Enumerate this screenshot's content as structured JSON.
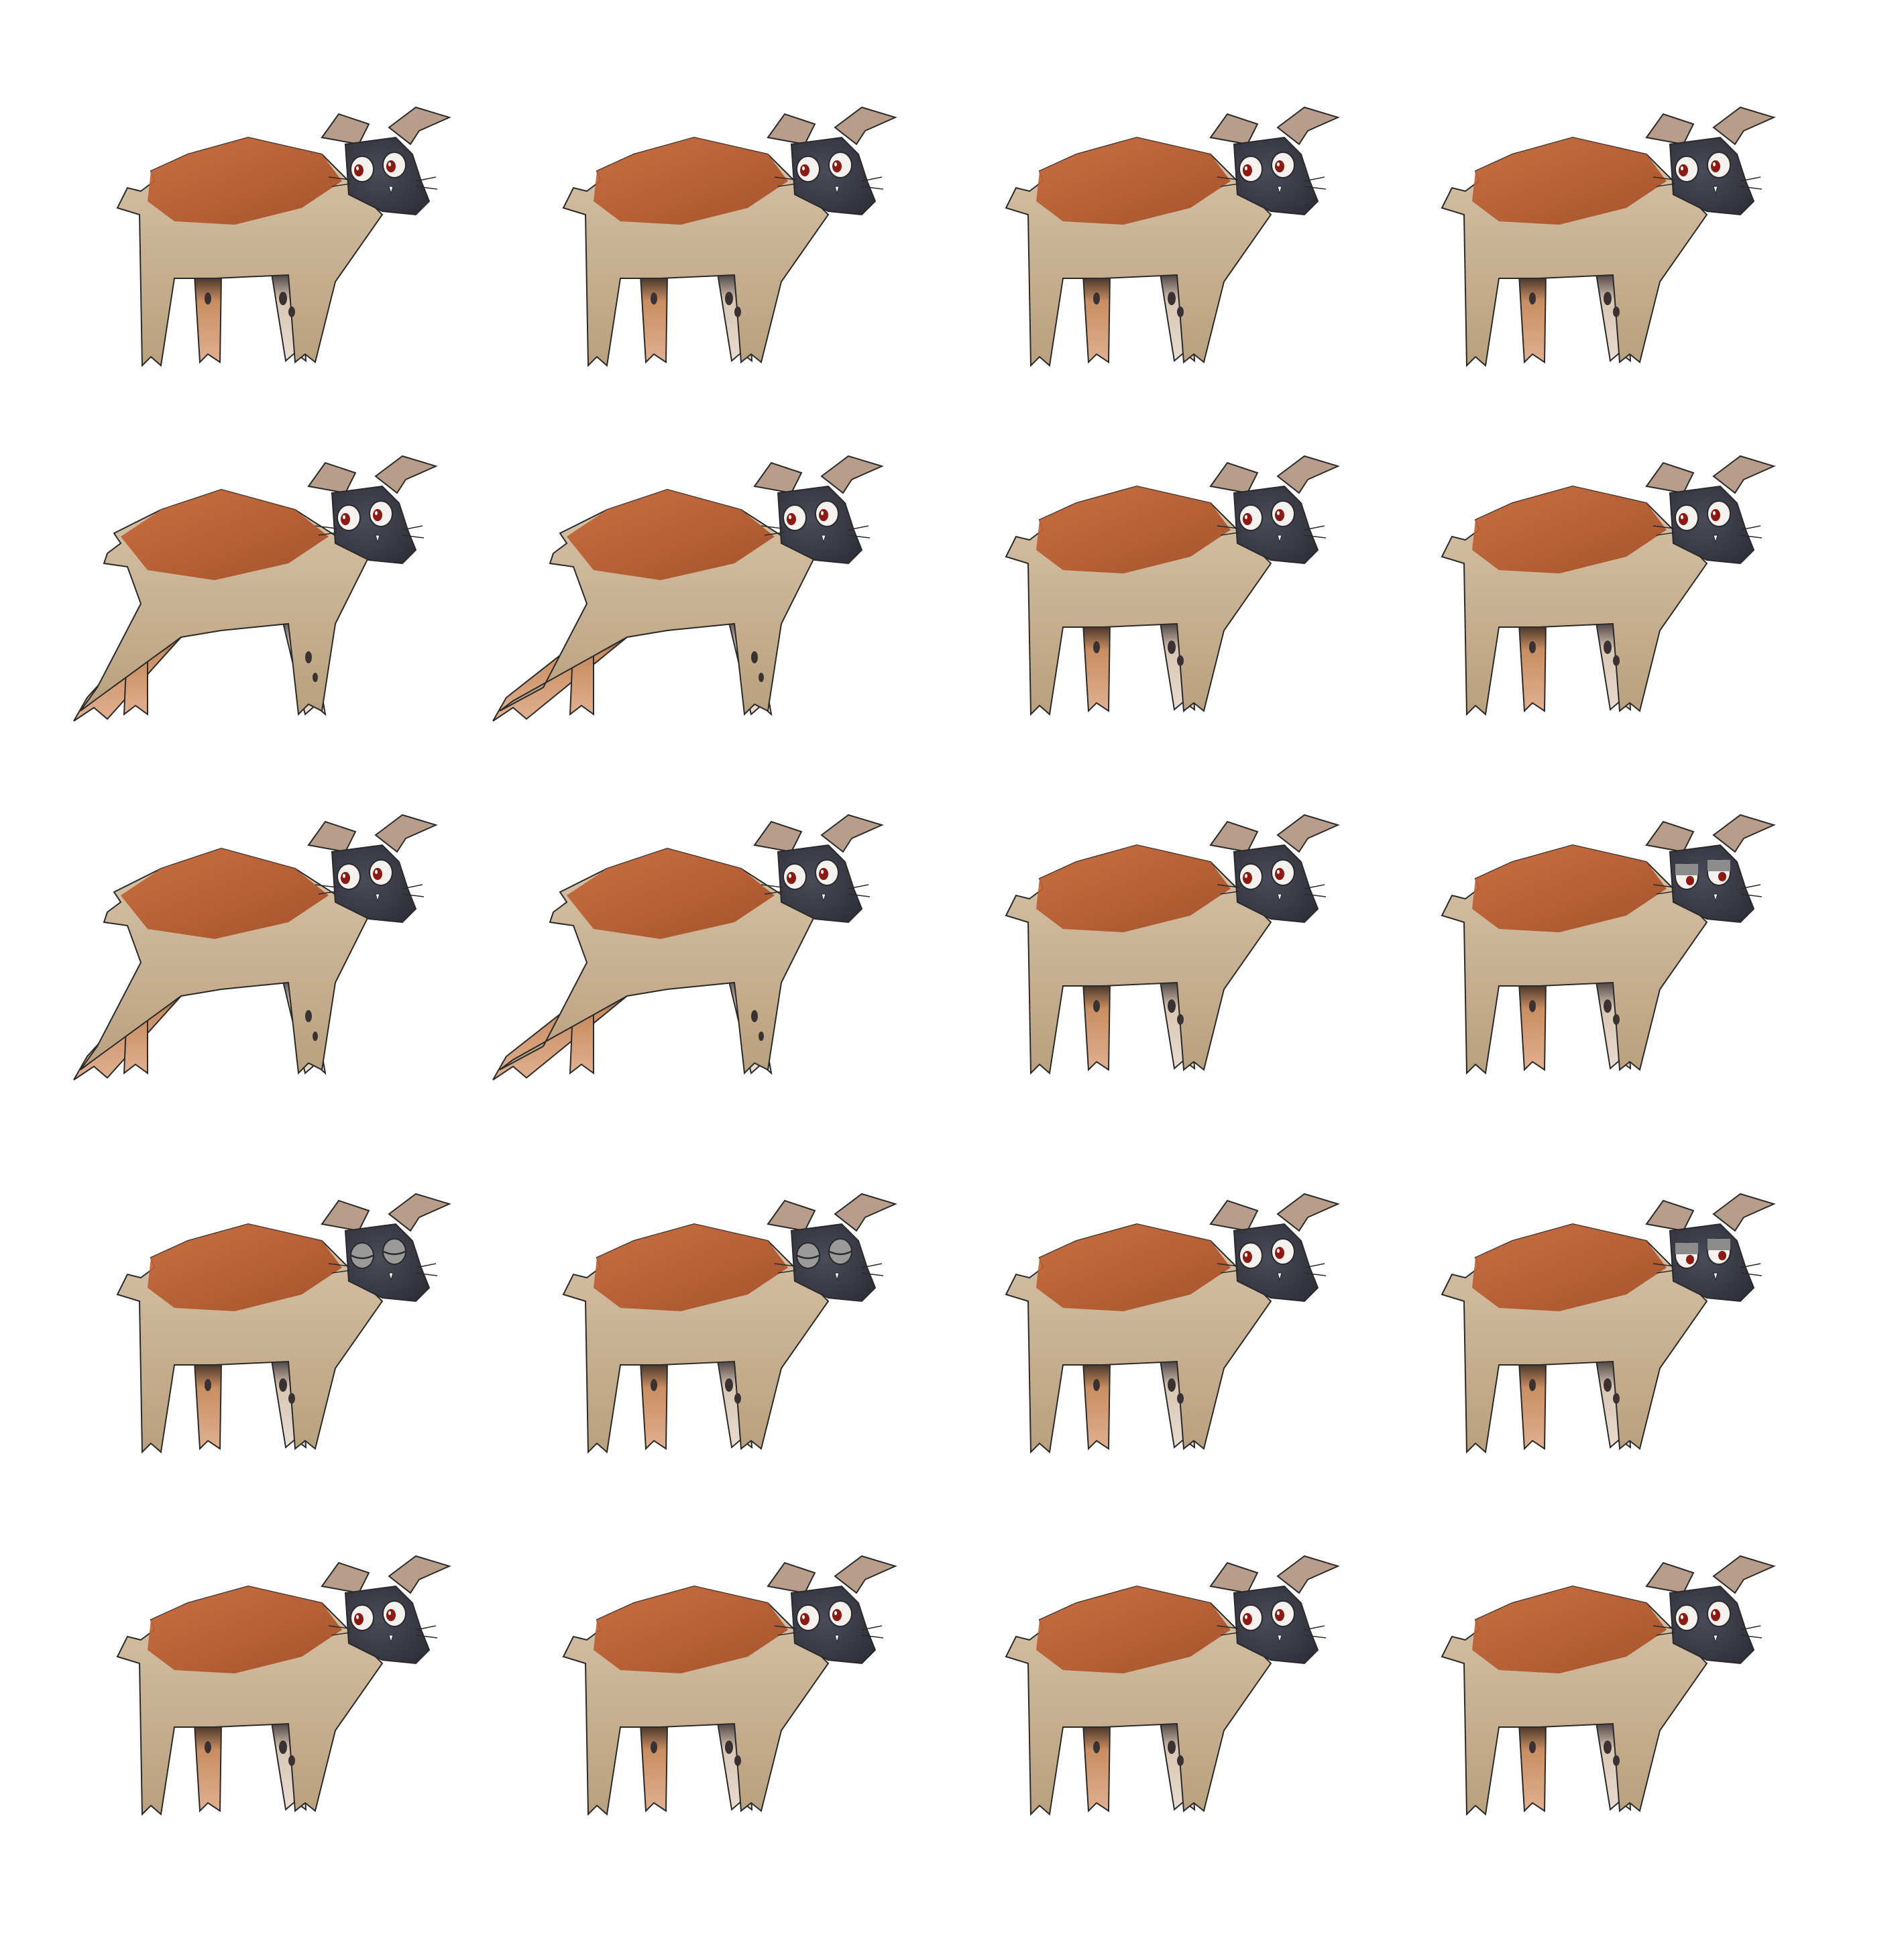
{
  "sheet": {
    "rows": 5,
    "cols": 4,
    "background": "#ffffff"
  },
  "colors": {
    "fur": "#d8c3a8",
    "fur_dark": "#b9a07e",
    "saddle": "#c8693a",
    "saddle_dark": "#a24a22",
    "face": "#2e2f3a",
    "ear": "#b89e8a",
    "leg_front": "#d9c6b4",
    "leg_back": "#c98e62",
    "leg_spots": "#3a3232",
    "eye_white": "#f5f1ee",
    "eye_iris": "#8a1a12",
    "outline": "#2a2a2a"
  },
  "frames": [
    {
      "pose": "stand",
      "eye": "open"
    },
    {
      "pose": "stand",
      "eye": "open"
    },
    {
      "pose": "stand",
      "eye": "open"
    },
    {
      "pose": "stand",
      "eye": "open"
    },
    {
      "pose": "run-a",
      "eye": "open"
    },
    {
      "pose": "run-b",
      "eye": "open"
    },
    {
      "pose": "stand",
      "eye": "open"
    },
    {
      "pose": "stand",
      "eye": "open"
    },
    {
      "pose": "run-a",
      "eye": "open"
    },
    {
      "pose": "run-b",
      "eye": "open"
    },
    {
      "pose": "stand",
      "eye": "open"
    },
    {
      "pose": "stand",
      "eye": "half"
    },
    {
      "pose": "stand",
      "eye": "closed"
    },
    {
      "pose": "stand",
      "eye": "closed"
    },
    {
      "pose": "stand",
      "eye": "open"
    },
    {
      "pose": "stand",
      "eye": "half"
    },
    {
      "pose": "stand",
      "eye": "open"
    },
    {
      "pose": "stand",
      "eye": "open"
    },
    {
      "pose": "stand",
      "eye": "open"
    },
    {
      "pose": "stand",
      "eye": "open"
    }
  ]
}
